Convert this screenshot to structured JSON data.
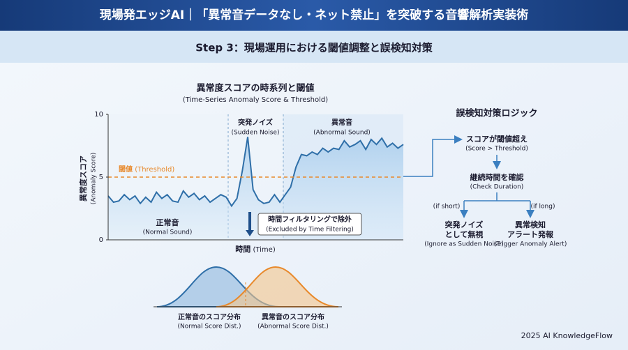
{
  "header": {
    "title": "現場発エッジAI｜「異常音データなし・ネット禁止」を突破する音響解析実装術",
    "subtitle": "Step 3：現場運用における閾値調整と誤検知対策"
  },
  "chart_data": {
    "type": "line",
    "title": "異常度スコアの時系列と閾値",
    "subtitle": "(Time-Series Anomaly Score & Threshold)",
    "x_label": "時間",
    "x_label_en": "(Time)",
    "y_label": "異常度スコア",
    "y_label_en": "(Anomaly Score)",
    "ylim": [
      0,
      10
    ],
    "yticks": [
      0,
      5,
      10
    ],
    "color": "#2f6fa8",
    "values": [
      3.5,
      3.0,
      3.1,
      3.6,
      3.2,
      3.5,
      2.9,
      3.4,
      3.0,
      3.8,
      3.3,
      3.6,
      3.1,
      3.0,
      3.9,
      3.4,
      3.7,
      3.2,
      3.5,
      3.0,
      3.3,
      3.6,
      3.4,
      2.7,
      3.3,
      5.5,
      8.2,
      4.0,
      3.2,
      2.9,
      3.0,
      3.6,
      3.0,
      3.6,
      4.2,
      5.8,
      6.8,
      6.7,
      7.0,
      6.8,
      7.3,
      7.0,
      7.3,
      7.2,
      7.9,
      7.4,
      7.6,
      7.9,
      7.2,
      8.0,
      7.6,
      8.1,
      7.4,
      7.7,
      7.3,
      7.6
    ],
    "threshold": 5,
    "threshold_color": "#e8892b",
    "threshold_label": "閾値",
    "threshold_label_en": "(Threshold)",
    "annotations": [
      {
        "text": "突発ノイズ",
        "text_en": "(Sudden Noise)"
      },
      {
        "text": "異常音",
        "text_en": "(Abnormal Sound)"
      },
      {
        "text": "正常音",
        "text_en": "(Normal Sound)"
      },
      {
        "text": "時間フィルタリングで除外",
        "text_en": "(Excluded by Time Filtering)"
      }
    ]
  },
  "distributions": [
    {
      "label": "正常音のスコア分布",
      "label_en": "(Normal Score Dist.)"
    },
    {
      "label": "異常音のスコア分布",
      "label_en": "(Abnormal Score Dist.)"
    }
  ],
  "logic": {
    "title": "誤検知対策ロジック",
    "nodes": [
      {
        "label": "スコアが閾値超え",
        "label_en": "(Score > Threshold)"
      },
      {
        "label": "継続時間を確認",
        "label_en": "(Check Duration)"
      }
    ],
    "branches": [
      {
        "condition": "(if short)",
        "line1": "突発ノイズ",
        "line2": "として無視",
        "label_en": "(Ignore as Sudden Noise)"
      },
      {
        "condition": "(if long)",
        "line1": "異常検知",
        "line2": "アラート発報",
        "label_en": "(Trigger Anomaly Alert)"
      }
    ]
  },
  "footer": "2025 AI KnowledgeFlow"
}
